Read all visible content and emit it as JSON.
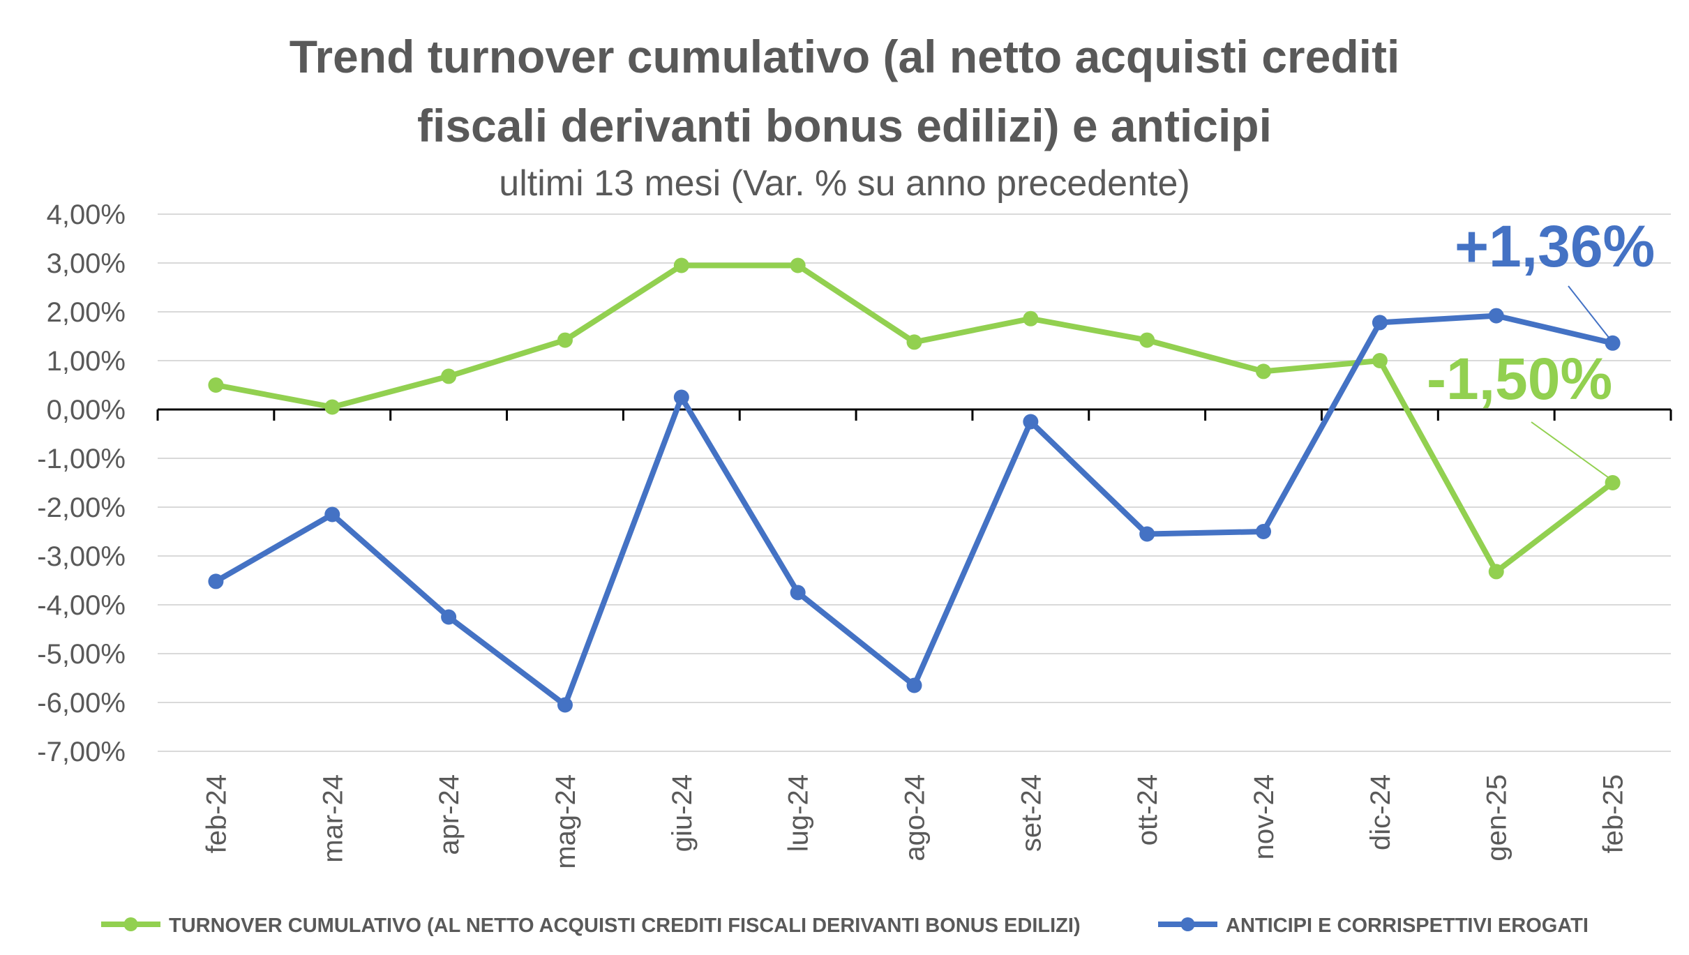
{
  "chart_data": {
    "type": "line",
    "title_line1": "Trend turnover cumulativo (al netto acquisti crediti",
    "title_line2": "fiscali derivanti bonus edilizi) e anticipi",
    "subtitle": "ultimi 13 mesi (Var. % su anno precedente)",
    "categories": [
      "feb-24",
      "mar-24",
      "apr-24",
      "mag-24",
      "giu-24",
      "lug-24",
      "ago-24",
      "set-24",
      "ott-24",
      "nov-24",
      "dic-24",
      "gen-25",
      "feb-25"
    ],
    "ylim": [
      -7,
      4
    ],
    "yticks": [
      4,
      3,
      2,
      1,
      0,
      -1,
      -2,
      -3,
      -4,
      -5,
      -6,
      -7
    ],
    "ytick_labels": [
      "4,00%",
      "3,00%",
      "2,00%",
      "1,00%",
      "0,00%",
      "-1,00%",
      "-2,00%",
      "-3,00%",
      "-4,00%",
      "-5,00%",
      "-6,00%",
      "-7,00%"
    ],
    "grid": true,
    "legend_position": "bottom",
    "series": [
      {
        "name": "TURNOVER CUMULATIVO (AL NETTO ACQUISTI CREDITI FISCALI DERIVANTI BONUS EDILIZI)",
        "color": "#92D050",
        "values": [
          0.5,
          0.05,
          0.68,
          1.42,
          2.95,
          2.95,
          1.38,
          1.86,
          1.42,
          0.78,
          1.0,
          -3.32,
          -1.5
        ]
      },
      {
        "name": "ANTICIPI E CORRISPETTIVI EROGATI",
        "color": "#4472C4",
        "values": [
          -3.52,
          -2.15,
          -4.25,
          -6.05,
          0.25,
          -3.75,
          -5.65,
          -0.25,
          -2.55,
          -2.5,
          1.78,
          1.92,
          1.36
        ]
      }
    ],
    "annotations": [
      {
        "text": "+1,36%",
        "series": 1,
        "point": 12,
        "color": "#4472C4"
      },
      {
        "text": "-1,50%",
        "series": 0,
        "point": 12,
        "color": "#92D050"
      }
    ]
  }
}
